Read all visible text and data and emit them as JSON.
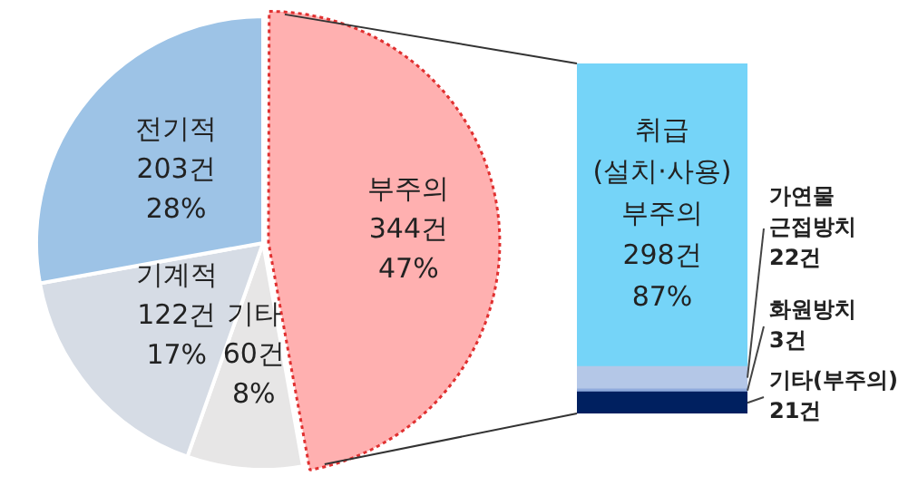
{
  "chart_data": [
    {
      "type": "pie",
      "categories": [
        "부주의",
        "기타",
        "기계적",
        "전기적"
      ],
      "values": [
        344,
        60,
        122,
        203
      ],
      "colors": [
        "#ffb0b0",
        "#e7e6e6",
        "#d6dce5",
        "#9dc3e6"
      ],
      "value_labels": [
        "344건 47%",
        "60건 8%",
        "122건 17%",
        "203건 28%"
      ]
    },
    {
      "type": "bar",
      "stacked": true,
      "categories": [
        null
      ],
      "series": [
        {
          "name": "기타(부주의)",
          "color": "#002060",
          "values": [
            21
          ],
          "value_labels": [
            "21건"
          ]
        },
        {
          "name": "화원방치",
          "color": "#8faadc",
          "values": [
            3
          ],
          "value_labels": [
            "3건"
          ]
        },
        {
          "name": "가연물 근접방치",
          "color": "#b4c7e7",
          "values": [
            22
          ],
          "value_labels": [
            "22건"
          ]
        },
        {
          "name": "취급 (설치·사용) 부주의",
          "color": "#75d4f8",
          "values": [
            298
          ],
          "value_labels": [
            "298건 87%"
          ]
        }
      ]
    }
  ]
}
